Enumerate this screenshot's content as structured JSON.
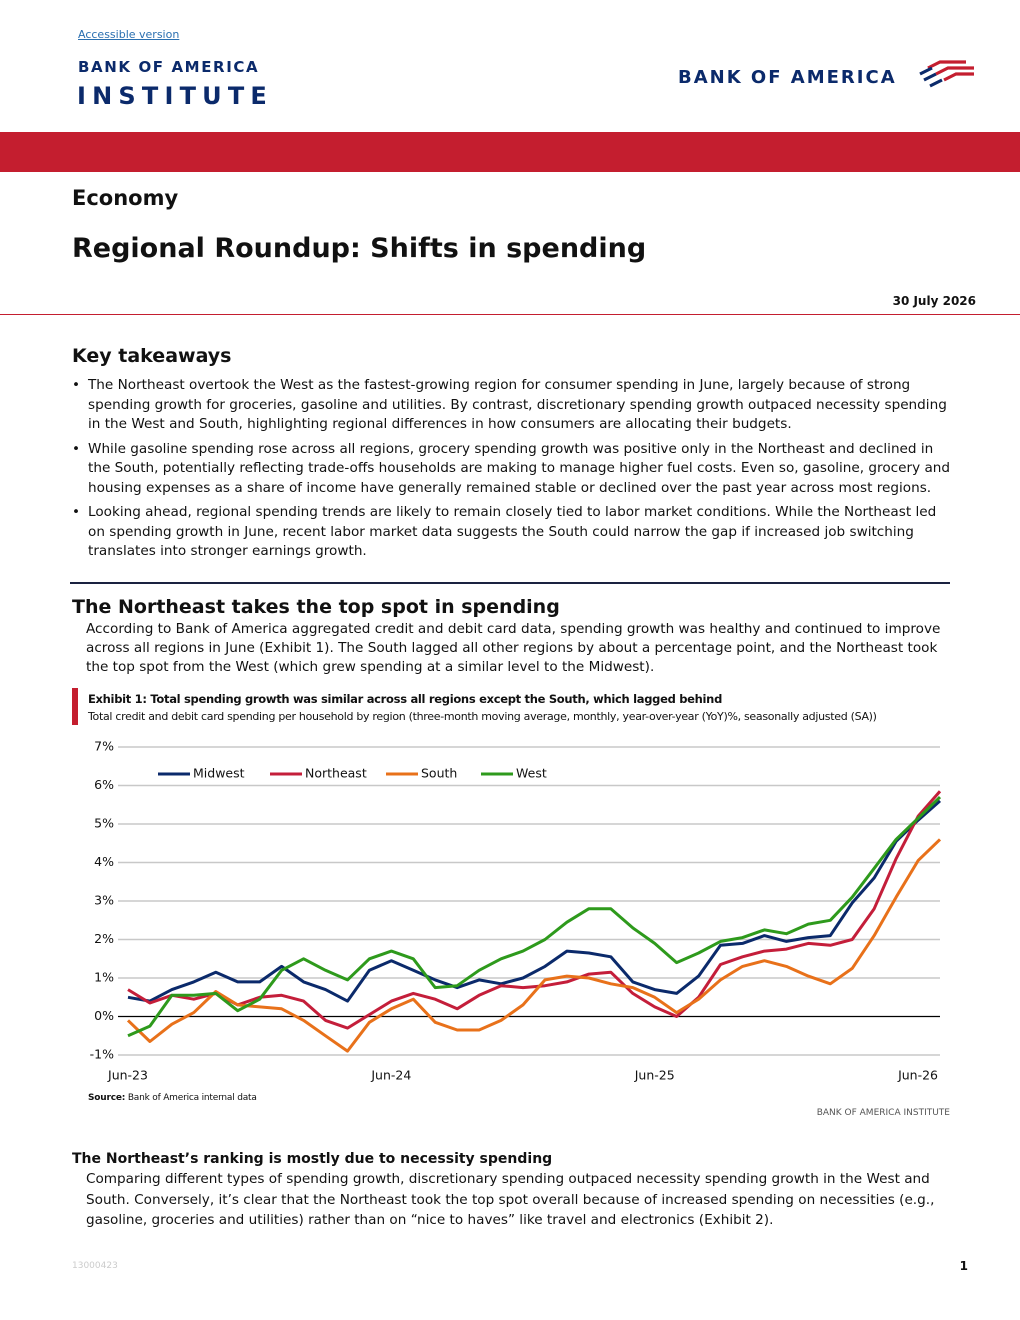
{
  "header": {
    "accessible_link": "Accessible version",
    "logo_top": "BANK OF AMERICA",
    "logo_bottom": "INSTITUTE",
    "brand": "BANK OF AMERICA"
  },
  "article": {
    "category": "Economy",
    "title": "Regional Roundup: Shifts in spending",
    "date": "30 July 2026",
    "takeaways_heading": "Key takeaways",
    "takeaways": [
      "The Northeast overtook the West as the fastest-growing region for consumer spending in June, largely because of strong spending growth for groceries, gasoline and utilities. By contrast, discretionary spending growth outpaced necessity spending in the West and South, highlighting regional differences in how consumers are allocating their budgets.",
      "While gasoline spending rose across all regions, grocery spending growth was positive only in the Northeast and declined in the South, potentially reflecting trade-offs households are making to manage higher fuel costs. Even so, gasoline, grocery and housing expenses as a share of income have generally remained stable or declined over the past year across most regions.",
      "Looking ahead, regional spending trends are likely to remain closely tied to labor market conditions. While the Northeast led on spending growth in June, recent labor market data suggests the South could narrow the gap if increased job switching translates into stronger earnings growth."
    ],
    "section_heading": "The Northeast takes the top spot in spending",
    "section_text": "According to Bank of America aggregated credit and debit card data, spending growth was healthy and continued to improve across all regions in June (Exhibit 1). The South lagged all other regions by about a percentage point, and the Northeast took the top spot from the West (which grew spending at a similar level to the Midwest).",
    "subheading": "The Northeast’s ranking is mostly due to necessity spending",
    "subheading_text": "Comparing different types of spending growth, discretionary spending outpaced necessity spending growth in the West and South. Conversely, it’s clear that the Northeast took the top spot overall because of increased spending on necessities (e.g., gasoline, groceries and utilities) rather than on “nice to haves” like travel and electronics (Exhibit 2)."
  },
  "chart_data": {
    "type": "line",
    "title": "Exhibit 1: Total spending growth was similar across all regions except the South, which lagged behind",
    "subtitle": "Total credit and debit card spending per household by region (three-month moving average, monthly, year-over-year (YoY)%, seasonally adjusted (SA))",
    "source_label": "Source:",
    "source": "Bank of America internal data",
    "credit": "BANK OF AMERICA INSTITUTE",
    "categories": [
      "Jun-23",
      null,
      null,
      null,
      null,
      null,
      null,
      null,
      null,
      null,
      null,
      null,
      "Jun-24",
      null,
      null,
      null,
      null,
      null,
      null,
      null,
      null,
      null,
      null,
      null,
      "Jun-25",
      null,
      null,
      null,
      null,
      null,
      null,
      null,
      null,
      null,
      null,
      null,
      "Jun-26",
      null
    ],
    "ylim": [
      -1,
      7
    ],
    "yticks": [
      {
        "value": -1,
        "label": "-1%"
      },
      {
        "value": 0,
        "label": "0%"
      },
      {
        "value": 1,
        "label": "1%"
      },
      {
        "value": 2,
        "label": "2%"
      },
      {
        "value": 3,
        "label": "3%"
      },
      {
        "value": 4,
        "label": "4%"
      },
      {
        "value": 5,
        "label": "5%"
      },
      {
        "value": 6,
        "label": "6%"
      },
      {
        "value": 7,
        "label": "7%"
      }
    ],
    "grid": true,
    "legend": "top-left",
    "series": [
      {
        "name": "Midwest",
        "color": "#0b2a6b",
        "values": [
          0.5,
          0.4,
          0.7,
          0.9,
          1.15,
          0.9,
          0.9,
          1.3,
          0.9,
          0.7,
          0.4,
          1.2,
          1.45,
          1.2,
          0.95,
          0.75,
          0.95,
          0.85,
          1.0,
          1.3,
          1.7,
          1.65,
          1.55,
          0.9,
          0.7,
          0.6,
          1.05,
          1.85,
          1.9,
          2.1,
          1.95,
          2.05,
          2.1,
          2.95,
          3.6,
          4.55,
          5.1,
          5.6
        ]
      },
      {
        "name": "Northeast",
        "color": "#c41e3a",
        "values": [
          0.7,
          0.35,
          0.55,
          0.45,
          0.6,
          0.3,
          0.5,
          0.55,
          0.4,
          -0.1,
          -0.3,
          0.05,
          0.4,
          0.6,
          0.45,
          0.2,
          0.55,
          0.8,
          0.75,
          0.8,
          0.9,
          1.1,
          1.15,
          0.6,
          0.25,
          0.0,
          0.5,
          1.35,
          1.55,
          1.7,
          1.75,
          1.9,
          1.85,
          2.0,
          2.8,
          4.1,
          5.2,
          5.85
        ]
      },
      {
        "name": "South",
        "color": "#e8711a",
        "values": [
          -0.1,
          -0.65,
          -0.2,
          0.1,
          0.65,
          0.3,
          0.25,
          0.2,
          -0.1,
          -0.5,
          -0.9,
          -0.15,
          0.2,
          0.45,
          -0.15,
          -0.35,
          -0.35,
          -0.1,
          0.3,
          0.95,
          1.05,
          1.0,
          0.85,
          0.75,
          0.5,
          0.1,
          0.45,
          0.95,
          1.3,
          1.45,
          1.3,
          1.05,
          0.85,
          1.25,
          2.1,
          3.1,
          4.05,
          4.6
        ]
      },
      {
        "name": "West",
        "color": "#2e9a1c",
        "values": [
          -0.5,
          -0.25,
          0.55,
          0.55,
          0.6,
          0.15,
          0.45,
          1.2,
          1.5,
          1.2,
          0.95,
          1.5,
          1.7,
          1.5,
          0.75,
          0.8,
          1.2,
          1.5,
          1.7,
          2.0,
          2.45,
          2.8,
          2.8,
          2.3,
          1.9,
          1.4,
          1.65,
          1.95,
          2.05,
          2.25,
          2.15,
          2.4,
          2.5,
          3.1,
          3.85,
          4.6,
          5.15,
          5.7
        ]
      }
    ]
  },
  "footer": {
    "doc_id": "13000423",
    "page": "1"
  }
}
